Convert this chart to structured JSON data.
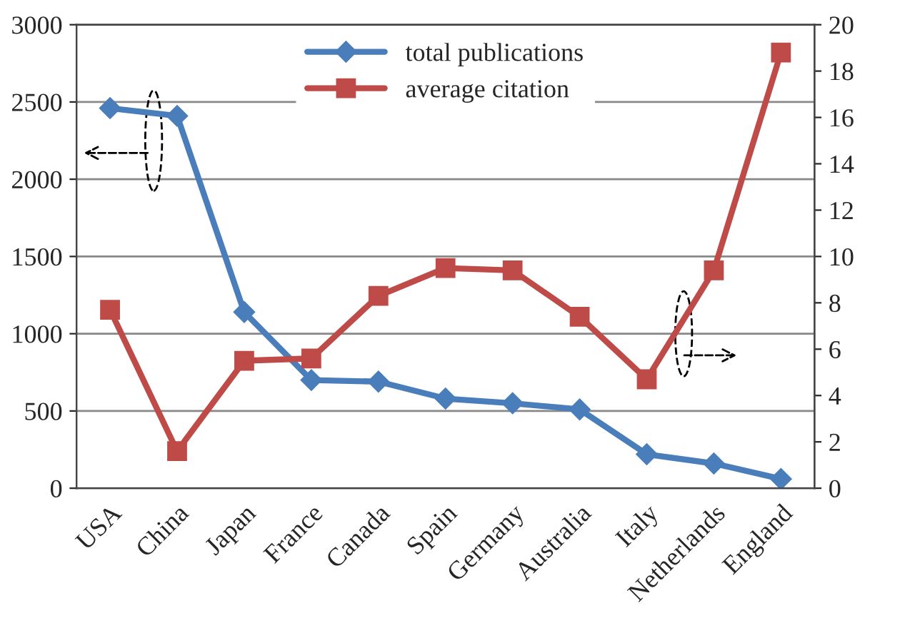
{
  "chart_data": {
    "type": "line",
    "categories": [
      "USA",
      "China",
      "Japan",
      "France",
      "Canada",
      "Spain",
      "Germany",
      "Australia",
      "Italy",
      "Netherlands",
      "England"
    ],
    "series": [
      {
        "name": "total publications",
        "color": "#4a7ebb",
        "values": [
          2460,
          2410,
          1140,
          700,
          690,
          580,
          550,
          510,
          220,
          160,
          60
        ],
        "marker": "diamond"
      },
      {
        "name": "average citation",
        "color": "#be4b48",
        "values": [
          7.7,
          1.6,
          5.5,
          5.6,
          8.3,
          9.5,
          9.4,
          7.4,
          4.7,
          9.4,
          18.8
        ],
        "marker": "square",
        "axis": "y2"
      }
    ],
    "ylim": [
      0,
      3000
    ],
    "yticks": [
      0,
      500,
      1000,
      1500,
      2000,
      2500,
      3000
    ],
    "y2lim": [
      0,
      20
    ],
    "y2ticks": [
      0,
      2,
      4,
      6,
      8,
      10,
      12,
      14,
      16,
      18,
      20
    ],
    "grid": "y",
    "legend": "top",
    "line_style": "solid"
  }
}
